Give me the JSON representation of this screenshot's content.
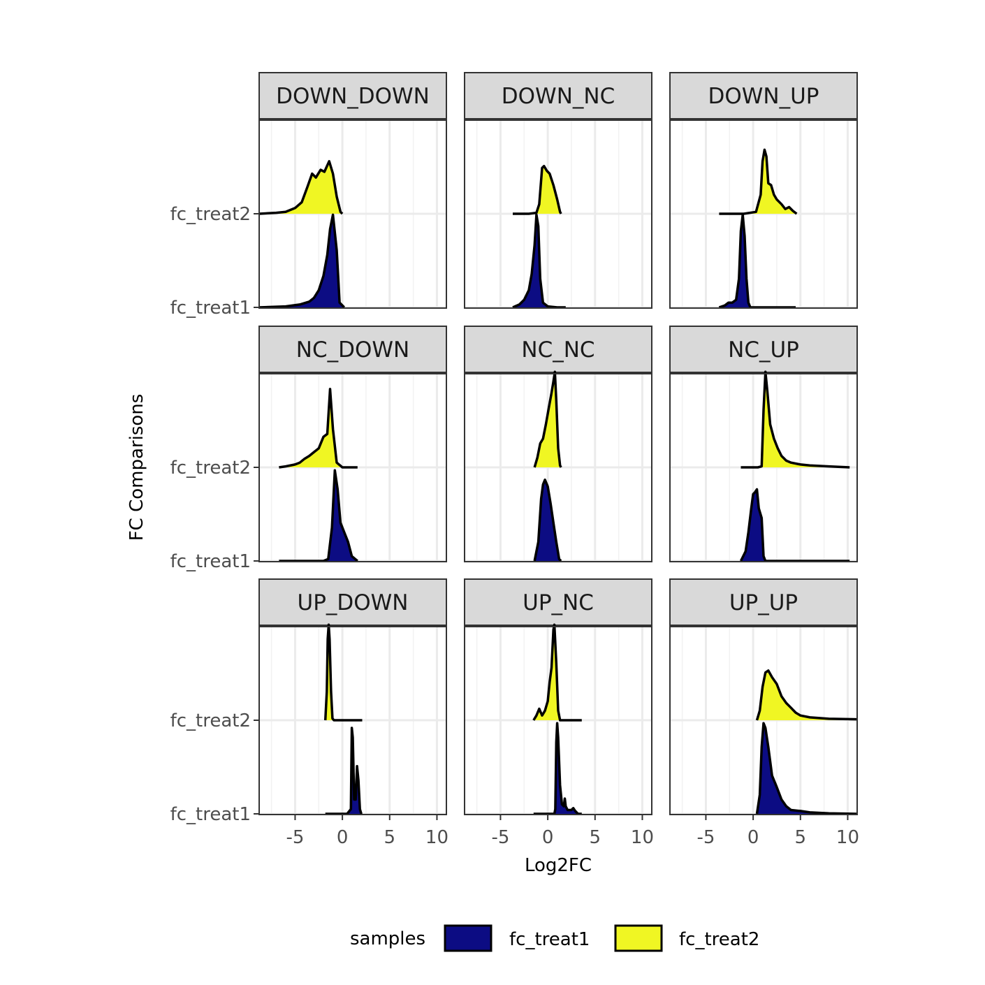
{
  "chart_data": {
    "type": "ridgeline-density",
    "xlabel": "Log2FC",
    "ylabel": "FC Comparisons",
    "xlim": [
      -8.8,
      11
    ],
    "x_ticks": [
      -5,
      0,
      5,
      10
    ],
    "x_tick_labels": [
      "-5",
      "0",
      "5",
      "10"
    ],
    "y_categories": [
      "fc_treat1",
      "fc_treat2"
    ],
    "grid": true,
    "legend": {
      "title": "samples",
      "position": "bottom",
      "entries": [
        {
          "name": "fc_treat1",
          "color": "#0c0c83"
        },
        {
          "name": "fc_treat2",
          "color": "#f0f623"
        }
      ]
    },
    "facets": [
      {
        "label": "DOWN_DOWN",
        "series": [
          {
            "name": "fc_treat1",
            "x": [
              -8.8,
              -6,
              -4.5,
              -3.5,
              -3,
              -2.5,
              -2,
              -1.6,
              -1.3,
              -1,
              -0.6,
              -0.3,
              0.2
            ],
            "y": [
              0,
              0.01,
              0.03,
              0.06,
              0.1,
              0.18,
              0.33,
              0.55,
              0.82,
              0.97,
              0.6,
              0.05,
              0
            ]
          },
          {
            "name": "fc_treat2",
            "x": [
              -8.8,
              -7,
              -6,
              -5,
              -4.3,
              -3.7,
              -3.2,
              -2.8,
              -2.3,
              -1.9,
              -1.4,
              -1,
              -0.6,
              -0.2,
              0
            ],
            "y": [
              0,
              0.01,
              0.02,
              0.06,
              0.12,
              0.28,
              0.42,
              0.38,
              0.46,
              0.44,
              0.55,
              0.42,
              0.18,
              0.02,
              0
            ]
          }
        ]
      },
      {
        "label": "DOWN_NC",
        "series": [
          {
            "name": "fc_treat1",
            "x": [
              -3.7,
              -3,
              -2.5,
              -2,
              -1.7,
              -1.4,
              -1.2,
              -1,
              -0.8,
              -0.5,
              0,
              1,
              1.9
            ],
            "y": [
              0,
              0.03,
              0.08,
              0.18,
              0.35,
              0.65,
              0.97,
              0.85,
              0.3,
              0.05,
              0.01,
              0,
              0
            ]
          },
          {
            "name": "fc_treat2",
            "x": [
              -3.7,
              -2,
              -1.2,
              -0.9,
              -0.6,
              -0.4,
              -0.1,
              0.2,
              0.6,
              1,
              1.3,
              1.4
            ],
            "y": [
              0,
              0,
              0.01,
              0.1,
              0.48,
              0.5,
              0.45,
              0.42,
              0.3,
              0.15,
              0.02,
              0
            ]
          }
        ]
      },
      {
        "label": "DOWN_UP",
        "series": [
          {
            "name": "fc_treat1",
            "x": [
              -3.6,
              -3,
              -2.6,
              -2.2,
              -1.8,
              -1.5,
              -1.3,
              -1.1,
              -0.9,
              -0.7,
              -0.5,
              -0.3,
              0.5,
              4.5
            ],
            "y": [
              0,
              0.02,
              0.05,
              0.05,
              0.08,
              0.3,
              0.8,
              0.97,
              0.75,
              0.3,
              0.05,
              0,
              0,
              0
            ]
          },
          {
            "name": "fc_treat2",
            "x": [
              -3.6,
              -1,
              0.3,
              0.8,
              1,
              1.2,
              1.4,
              1.6,
              1.9,
              2.2,
              2.5,
              3,
              3.4,
              3.8,
              4.2,
              4.6
            ],
            "y": [
              0,
              0,
              0.02,
              0.2,
              0.55,
              0.67,
              0.6,
              0.32,
              0.3,
              0.2,
              0.15,
              0.1,
              0.05,
              0.07,
              0.03,
              0
            ]
          }
        ]
      },
      {
        "label": "NC_DOWN",
        "series": [
          {
            "name": "fc_treat1",
            "x": [
              -6.7,
              -2,
              -1.5,
              -1.1,
              -0.8,
              -0.5,
              -0.2,
              0.2,
              0.6,
              1,
              1.6
            ],
            "y": [
              0,
              0,
              0.02,
              0.35,
              0.95,
              0.75,
              0.4,
              0.3,
              0.2,
              0.05,
              0
            ]
          },
          {
            "name": "fc_treat2",
            "x": [
              -6.7,
              -6,
              -5,
              -4.5,
              -4,
              -3.5,
              -3,
              -2.5,
              -2,
              -1.6,
              -1.3,
              -1,
              -0.6,
              0,
              1.6
            ],
            "y": [
              0,
              0.01,
              0.03,
              0.05,
              0.09,
              0.12,
              0.16,
              0.2,
              0.32,
              0.35,
              0.82,
              0.4,
              0.05,
              0,
              0
            ]
          }
        ]
      },
      {
        "label": "NC_NC",
        "series": [
          {
            "name": "fc_treat1",
            "x": [
              -1.4,
              -1,
              -0.7,
              -0.5,
              -0.3,
              0,
              0.3,
              0.6,
              0.9,
              1.2,
              1.4
            ],
            "y": [
              0,
              0.2,
              0.65,
              0.8,
              0.85,
              0.78,
              0.6,
              0.4,
              0.2,
              0.02,
              0
            ]
          },
          {
            "name": "fc_treat2",
            "x": [
              -1.4,
              -1.1,
              -0.8,
              -0.5,
              -0.2,
              0.1,
              0.4,
              0.6,
              0.75,
              0.9,
              1.1,
              1.3,
              1.4
            ],
            "y": [
              0,
              0.1,
              0.25,
              0.3,
              0.45,
              0.62,
              0.78,
              0.9,
              1,
              0.7,
              0.2,
              0.02,
              0
            ]
          }
        ]
      },
      {
        "label": "NC_UP",
        "series": [
          {
            "name": "fc_treat1",
            "x": [
              -1.3,
              -0.8,
              -0.5,
              -0.2,
              0,
              0.2,
              0.4,
              0.6,
              0.9,
              1.1,
              1.3,
              2,
              10.2
            ],
            "y": [
              0,
              0.1,
              0.3,
              0.55,
              0.7,
              0.72,
              0.75,
              0.55,
              0.45,
              0.05,
              0,
              0,
              0
            ]
          },
          {
            "name": "fc_treat2",
            "x": [
              -1.3,
              0.5,
              0.9,
              1.1,
              1.3,
              1.5,
              1.8,
              2.2,
              2.6,
              3,
              3.5,
              4,
              5,
              6,
              8,
              10.2
            ],
            "y": [
              0,
              0,
              0.01,
              0.6,
              1,
              0.8,
              0.45,
              0.3,
              0.2,
              0.12,
              0.07,
              0.05,
              0.03,
              0.02,
              0.01,
              0
            ]
          }
        ]
      },
      {
        "label": "UP_DOWN",
        "series": [
          {
            "name": "fc_treat1",
            "x": [
              -1.8,
              0.5,
              0.9,
              1,
              1.1,
              1.25,
              1.4,
              1.55,
              1.7,
              1.85,
              2,
              2.1
            ],
            "y": [
              0,
              0,
              0.05,
              0.9,
              0.8,
              0.15,
              0.15,
              0.5,
              0.35,
              0.05,
              0,
              0
            ]
          },
          {
            "name": "fc_treat2",
            "x": [
              -1.8,
              -1.65,
              -1.55,
              -1.45,
              -1.35,
              -1.2,
              -1.05,
              -0.9,
              2.1
            ],
            "y": [
              0,
              0.3,
              0.85,
              1,
              0.85,
              0.3,
              0.02,
              0,
              0
            ]
          }
        ]
      },
      {
        "label": "UP_NC",
        "series": [
          {
            "name": "fc_treat1",
            "x": [
              -1.5,
              0.7,
              0.8,
              0.9,
              1,
              1.1,
              1.3,
              1.5,
              1.7,
              1.8,
              1.9,
              2.1,
              2.5,
              2.7,
              2.9,
              3.2,
              3.6
            ],
            "y": [
              0,
              0,
              0.05,
              0.75,
              0.95,
              0.8,
              0.3,
              0.1,
              0.08,
              0.16,
              0.08,
              0.04,
              0.04,
              0.06,
              0.03,
              0,
              0
            ]
          },
          {
            "name": "fc_treat2",
            "x": [
              -1.5,
              -1.2,
              -0.9,
              -0.6,
              -0.3,
              0,
              0.2,
              0.4,
              0.6,
              0.7,
              0.9,
              1.1,
              1.3,
              1.5,
              3.6
            ],
            "y": [
              0,
              0.05,
              0.12,
              0.05,
              0.1,
              0.2,
              0.4,
              0.55,
              0.95,
              1,
              0.6,
              0.1,
              0,
              0,
              0
            ]
          }
        ]
      },
      {
        "label": "UP_UP",
        "series": [
          {
            "name": "fc_treat1",
            "x": [
              0.4,
              0.7,
              0.9,
              1.1,
              1.3,
              1.6,
              2,
              2.5,
              3,
              3.5,
              4,
              5,
              6,
              8,
              11
            ],
            "y": [
              0,
              0.2,
              0.7,
              0.95,
              0.9,
              0.7,
              0.4,
              0.28,
              0.15,
              0.08,
              0.04,
              0.03,
              0.015,
              0.005,
              0
            ]
          },
          {
            "name": "fc_treat2",
            "x": [
              0.4,
              0.7,
              1,
              1.3,
              1.6,
              2,
              2.5,
              3,
              3.5,
              4,
              4.5,
              5,
              6,
              8,
              11
            ],
            "y": [
              0,
              0.1,
              0.35,
              0.5,
              0.52,
              0.45,
              0.38,
              0.25,
              0.18,
              0.13,
              0.08,
              0.05,
              0.03,
              0.015,
              0.01
            ]
          }
        ]
      }
    ]
  }
}
